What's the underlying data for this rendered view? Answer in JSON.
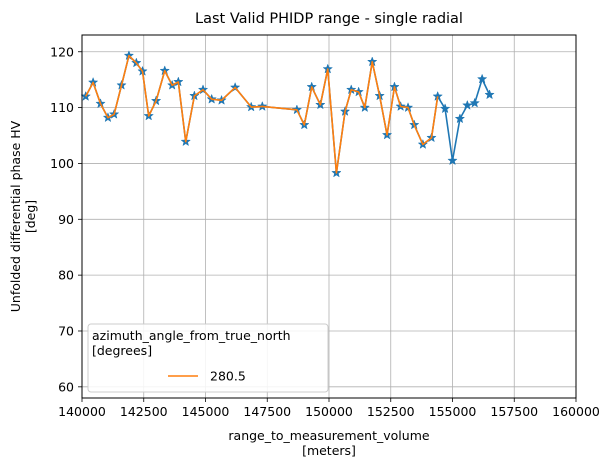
{
  "chart_data": {
    "type": "line",
    "title": "Last Valid PHIDP range - single radial",
    "xlabel": "range_to_measurement_volume",
    "xlabel_unit": "[meters]",
    "ylabel": "Unfolded differential phase HV",
    "ylabel_unit": "[deg]",
    "xlim": [
      140000,
      160000
    ],
    "ylim": [
      58,
      123
    ],
    "xticks": [
      140000,
      142500,
      145000,
      147500,
      150000,
      152500,
      155000,
      157500,
      160000
    ],
    "yticks": [
      60,
      70,
      80,
      90,
      100,
      110,
      120
    ],
    "grid": true,
    "legend": {
      "placement": "lower-left",
      "title_line1": "azimuth_angle_from_true_north",
      "title_line2": "[degrees]",
      "entries": [
        "280.5"
      ]
    },
    "series": [
      {
        "name": "",
        "role": "star-markers-and-connecting-line",
        "color": "#1f77b4",
        "x": [
          140150,
          140450,
          140750,
          141050,
          141300,
          141600,
          141900,
          142200,
          142450,
          142700,
          143000,
          143350,
          143650,
          143900,
          144200,
          144550,
          144900,
          145250,
          145650,
          146200,
          146850,
          147300,
          148700,
          149000,
          149300,
          149650,
          149950,
          150300,
          150650,
          150900,
          151200,
          151450,
          151750,
          152050,
          152350,
          152650,
          152900,
          153200,
          153450,
          153800,
          154150,
          154400,
          154700,
          155000,
          155300,
          155600,
          155900,
          156200,
          156500
        ],
        "y": [
          112.0,
          114.5,
          110.7,
          108.2,
          108.8,
          114.0,
          119.3,
          118.0,
          116.5,
          108.5,
          111.2,
          116.6,
          114.0,
          114.6,
          103.9,
          112.1,
          113.2,
          111.5,
          111.3,
          113.6,
          110.1,
          110.2,
          109.6,
          106.9,
          113.7,
          110.5,
          116.9,
          98.3,
          109.3,
          113.2,
          112.8,
          110.0,
          118.2,
          112.1,
          105.1,
          113.7,
          110.2,
          110.0,
          106.9,
          103.4,
          104.6,
          112.0,
          109.8,
          100.5,
          108.0,
          110.4,
          110.8,
          115.1,
          112.3
        ]
      },
      {
        "name": "280.5",
        "role": "line",
        "color": "#ff7f0e",
        "x": [
          140150,
          140450,
          140750,
          141050,
          141300,
          141600,
          141900,
          142200,
          142450,
          142700,
          143000,
          143350,
          143650,
          143900,
          144200,
          144550,
          144900,
          145250,
          145650,
          146200,
          146850,
          147300,
          148700,
          149000,
          149300,
          149650,
          149950,
          150300,
          150650,
          150900,
          151200,
          151450,
          151750,
          152050,
          152350,
          152650,
          152900,
          153200,
          153450,
          153800,
          154150,
          154400
        ],
        "y": [
          112.0,
          114.5,
          110.7,
          108.2,
          108.8,
          114.0,
          119.3,
          118.0,
          116.5,
          108.5,
          111.2,
          116.6,
          114.0,
          114.6,
          103.9,
          112.1,
          113.2,
          111.5,
          111.3,
          113.6,
          110.1,
          110.2,
          109.6,
          106.9,
          113.7,
          110.5,
          116.9,
          98.3,
          109.3,
          113.2,
          112.8,
          110.0,
          118.2,
          112.1,
          105.1,
          113.7,
          110.2,
          110.0,
          106.9,
          103.4,
          104.6,
          112.0
        ]
      }
    ]
  }
}
